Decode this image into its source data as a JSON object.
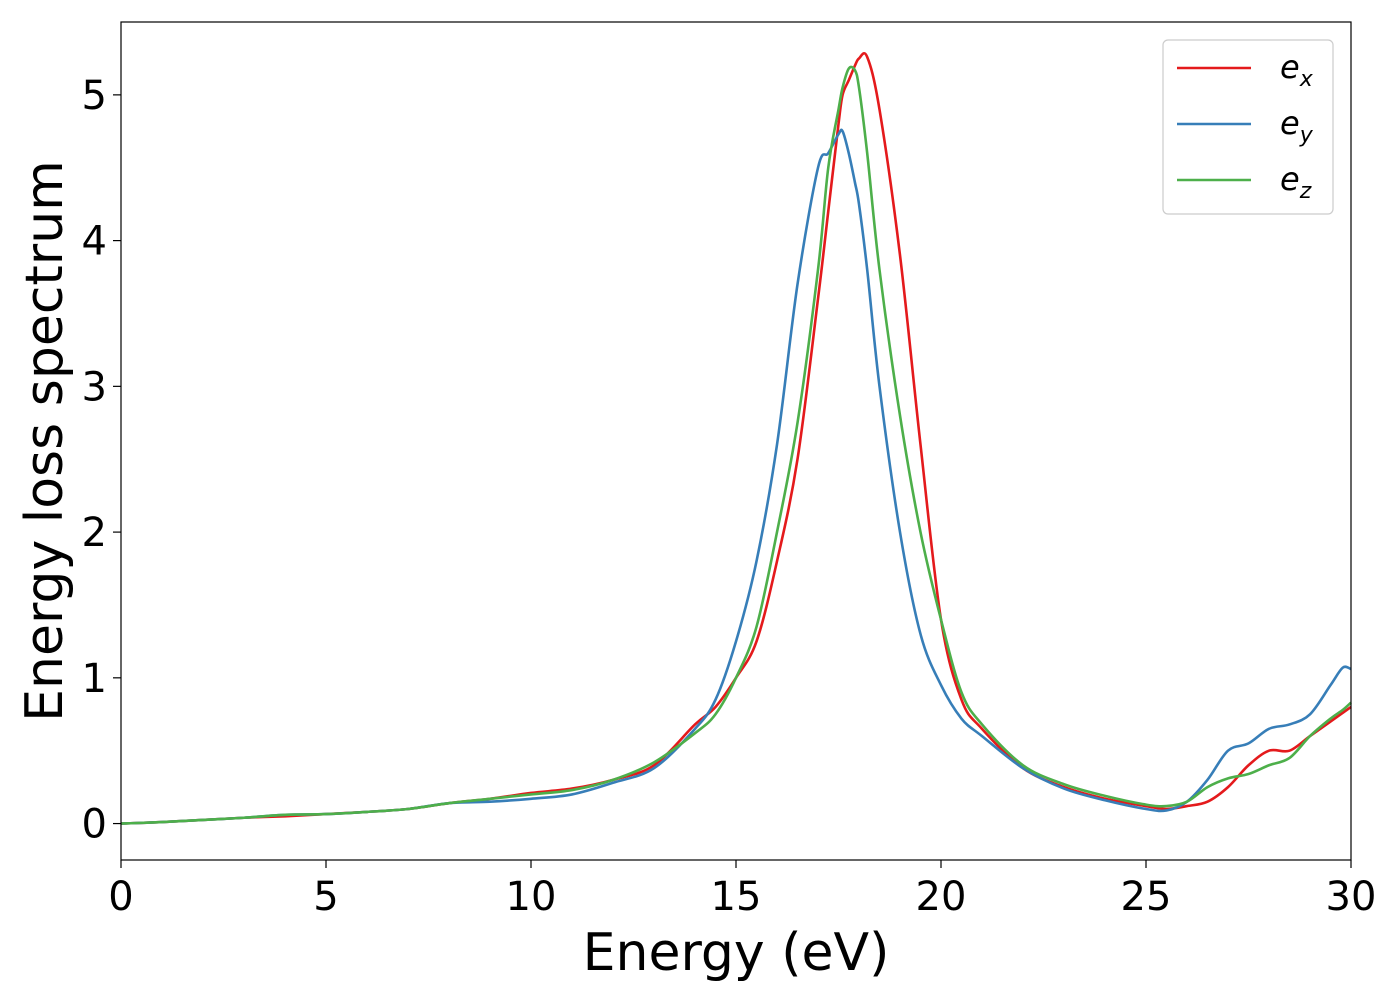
{
  "chart_data": {
    "type": "line",
    "title": "",
    "xlabel": "Energy (eV)",
    "ylabel": "Energy loss spectrum",
    "xlim": [
      0,
      30
    ],
    "ylim": [
      -0.25,
      5.5
    ],
    "xticks": [
      0,
      5,
      10,
      15,
      20,
      25,
      30
    ],
    "yticks": [
      0,
      1,
      2,
      3,
      4,
      5
    ],
    "grid": false,
    "legend_position": "top-right",
    "x": [
      0,
      1,
      2,
      3,
      4,
      5,
      6,
      7,
      8,
      9,
      10,
      11,
      12,
      13,
      14,
      14.5,
      15,
      15.5,
      16,
      16.5,
      17,
      17.25,
      17.5,
      17.6,
      17.75,
      17.9,
      18,
      18.2,
      18.5,
      19,
      19.5,
      20,
      20.5,
      21,
      22,
      23,
      24,
      25,
      25.5,
      26,
      26.5,
      27,
      27.5,
      28,
      28.5,
      29,
      29.5,
      29.8,
      30
    ],
    "series": [
      {
        "name": "e",
        "subscript": "x",
        "color": "#e41a1c",
        "values": [
          0,
          0.01,
          0.025,
          0.04,
          0.05,
          0.065,
          0.08,
          0.1,
          0.14,
          0.17,
          0.21,
          0.24,
          0.3,
          0.4,
          0.68,
          0.8,
          1.0,
          1.25,
          1.8,
          2.5,
          3.6,
          4.2,
          4.8,
          5.0,
          5.1,
          5.2,
          5.25,
          5.26,
          4.9,
          3.9,
          2.6,
          1.4,
          0.85,
          0.65,
          0.38,
          0.25,
          0.17,
          0.12,
          0.1,
          0.12,
          0.15,
          0.25,
          0.4,
          0.5,
          0.5,
          0.6,
          0.7,
          0.76,
          0.8
        ]
      },
      {
        "name": "e",
        "subscript": "y",
        "color": "#377eb8",
        "values": [
          0,
          0.01,
          0.025,
          0.04,
          0.06,
          0.065,
          0.08,
          0.1,
          0.14,
          0.15,
          0.17,
          0.2,
          0.28,
          0.38,
          0.65,
          0.85,
          1.25,
          1.8,
          2.6,
          3.7,
          4.5,
          4.6,
          4.73,
          4.75,
          4.6,
          4.4,
          4.25,
          3.8,
          3.0,
          2.0,
          1.3,
          0.95,
          0.72,
          0.6,
          0.38,
          0.24,
          0.16,
          0.1,
          0.09,
          0.15,
          0.3,
          0.5,
          0.55,
          0.65,
          0.68,
          0.75,
          0.95,
          1.07,
          1.06
        ]
      },
      {
        "name": "e",
        "subscript": "z",
        "color": "#4daf4a",
        "values": [
          0,
          0.01,
          0.025,
          0.04,
          0.06,
          0.065,
          0.08,
          0.1,
          0.14,
          0.17,
          0.2,
          0.23,
          0.3,
          0.42,
          0.62,
          0.75,
          1.0,
          1.35,
          2.0,
          2.75,
          3.8,
          4.5,
          4.9,
          5.05,
          5.18,
          5.17,
          5.05,
          4.6,
          3.8,
          2.8,
          2.0,
          1.4,
          0.9,
          0.68,
          0.4,
          0.27,
          0.19,
          0.13,
          0.12,
          0.15,
          0.25,
          0.31,
          0.34,
          0.4,
          0.45,
          0.6,
          0.72,
          0.78,
          0.83
        ]
      }
    ]
  }
}
